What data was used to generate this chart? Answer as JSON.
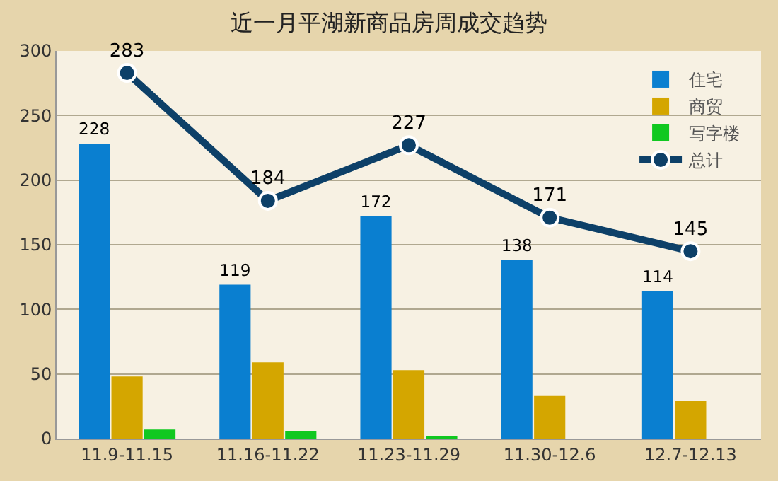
{
  "chart_data": {
    "type": "bar",
    "title": "近一月平湖新商品房周成交趋势",
    "categories": [
      "11.9-11.15",
      "11.16-11.22",
      "11.23-11.29",
      "11.30-12.6",
      "12.7-12.13"
    ],
    "series": [
      {
        "name": "住宅",
        "color": "#0a7fd0",
        "values": [
          228,
          119,
          172,
          138,
          114
        ],
        "value_labels": [
          "228",
          "119",
          "172",
          "138",
          "114"
        ]
      },
      {
        "name": "商贸",
        "color": "#d4a600",
        "values": [
          48,
          59,
          53,
          33,
          29
        ]
      },
      {
        "name": "写字楼",
        "color": "#10c820",
        "values": [
          7,
          6,
          2,
          0,
          0
        ]
      },
      {
        "name": "总计",
        "type": "line",
        "color": "#0d4068",
        "values": [
          283,
          184,
          227,
          171,
          145
        ],
        "value_labels": [
          "283",
          "184",
          "227",
          "171",
          "145"
        ],
        "marker": "circle"
      }
    ],
    "ylim": [
      0,
      300
    ],
    "yticks": [
      0,
      50,
      100,
      150,
      200,
      250,
      300
    ],
    "grid": "y",
    "legend": "top right"
  }
}
